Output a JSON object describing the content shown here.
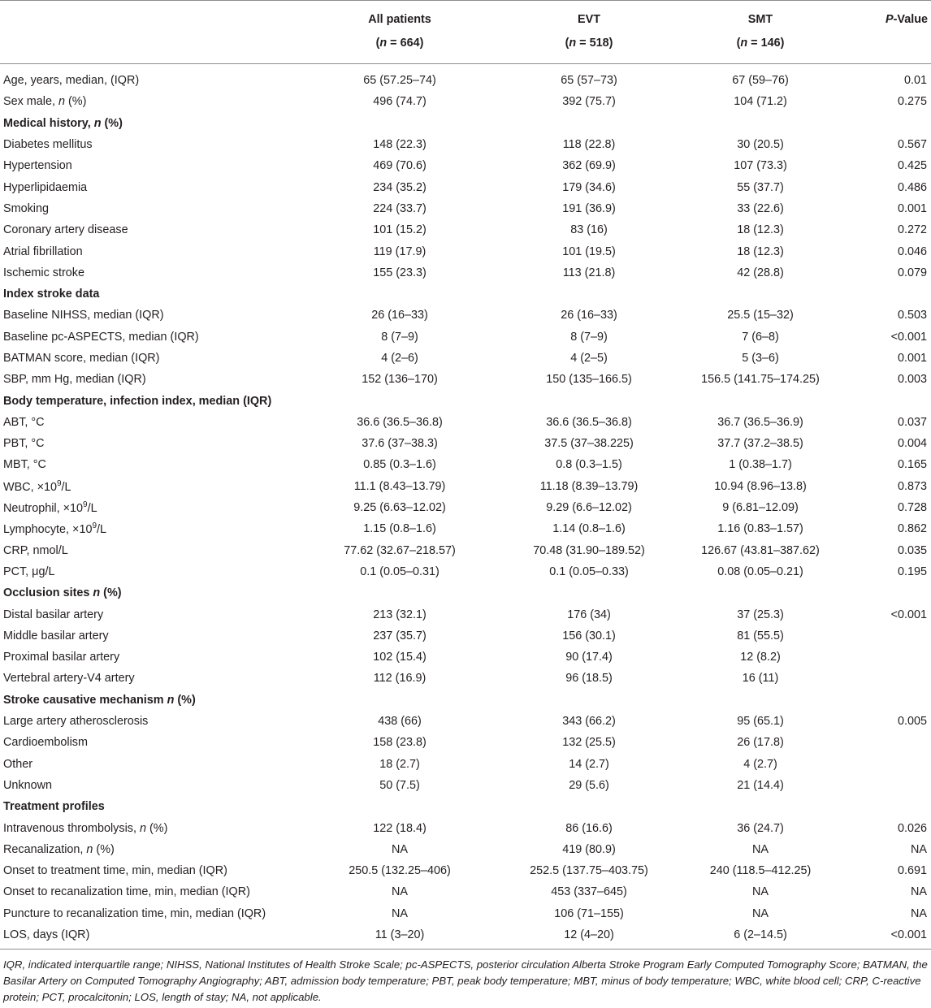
{
  "table": {
    "header": {
      "c1": {
        "name": "All patients",
        "n_label": "n",
        "n_value": " = 664)"
      },
      "c2": {
        "name": "EVT",
        "n_label": "n",
        "n_value": " = 518)"
      },
      "c3": {
        "name": "SMT",
        "n_label": "n",
        "n_value": " = 146)"
      },
      "pvalue": {
        "italic": "P",
        "rest": "-Value"
      }
    },
    "rows": [
      {
        "type": "data",
        "label": "Age, years, median, (IQR)",
        "all": "65 (57.25–74)",
        "evt": "65 (57–73)",
        "smt": "67 (59–76)",
        "p": "0.01"
      },
      {
        "type": "data",
        "label": "Sex male, ",
        "label_it": "n",
        "label_post": " (%)",
        "all": "496 (74.7)",
        "evt": "392 (75.7)",
        "smt": "104 (71.2)",
        "p": "0.275"
      },
      {
        "type": "section",
        "label": "Medical history, ",
        "label_it": "n",
        "label_post": " (%)"
      },
      {
        "type": "data",
        "label": "Diabetes mellitus",
        "all": "148 (22.3)",
        "evt": "118 (22.8)",
        "smt": "30 (20.5)",
        "p": "0.567"
      },
      {
        "type": "data",
        "label": "Hypertension",
        "all": "469 (70.6)",
        "evt": "362 (69.9)",
        "smt": "107 (73.3)",
        "p": "0.425"
      },
      {
        "type": "data",
        "label": "Hyperlipidaemia",
        "all": "234 (35.2)",
        "evt": "179 (34.6)",
        "smt": "55 (37.7)",
        "p": "0.486"
      },
      {
        "type": "data",
        "label": "Smoking",
        "all": "224 (33.7)",
        "evt": "191 (36.9)",
        "smt": "33 (22.6)",
        "p": "0.001"
      },
      {
        "type": "data",
        "label": "Coronary artery disease",
        "all": "101 (15.2)",
        "evt": "83 (16)",
        "smt": "18 (12.3)",
        "p": "0.272"
      },
      {
        "type": "data",
        "label": "Atrial fibrillation",
        "all": "119 (17.9)",
        "evt": "101 (19.5)",
        "smt": "18 (12.3)",
        "p": "0.046"
      },
      {
        "type": "data",
        "label": "Ischemic stroke",
        "all": "155 (23.3)",
        "evt": "113 (21.8)",
        "smt": "42 (28.8)",
        "p": "0.079"
      },
      {
        "type": "section",
        "label": "Index stroke data"
      },
      {
        "type": "data",
        "label": "Baseline NIHSS, median (IQR)",
        "all": "26 (16–33)",
        "evt": "26 (16–33)",
        "smt": "25.5 (15–32)",
        "p": "0.503"
      },
      {
        "type": "data",
        "label": "Baseline pc-ASPECTS, median (IQR)",
        "all": "8 (7–9)",
        "evt": "8 (7–9)",
        "smt": "7 (6–8)",
        "p": "<0.001"
      },
      {
        "type": "data",
        "label": "BATMAN score, median (IQR)",
        "all": "4 (2–6)",
        "evt": "4 (2–5)",
        "smt": "5 (3–6)",
        "p": "0.001"
      },
      {
        "type": "data",
        "label": "SBP, mm Hg, median (IQR)",
        "all": "152 (136–170)",
        "evt": "150 (135–166.5)",
        "smt": "156.5 (141.75–174.25)",
        "p": "0.003"
      },
      {
        "type": "section",
        "label": "Body temperature, infection index, median (IQR)"
      },
      {
        "type": "data",
        "label": "ABT, °C",
        "all": "36.6 (36.5–36.8)",
        "evt": "36.6 (36.5–36.8)",
        "smt": "36.7 (36.5–36.9)",
        "p": "0.037"
      },
      {
        "type": "data",
        "label": "PBT, °C",
        "all": "37.6 (37–38.3)",
        "evt": "37.5 (37–38.225)",
        "smt": "37.7 (37.2–38.5)",
        "p": "0.004"
      },
      {
        "type": "data",
        "label": "MBT, °C",
        "all": "0.85 (0.3–1.6)",
        "evt": "0.8 (0.3–1.5)",
        "smt": "1 (0.38–1.7)",
        "p": "0.165"
      },
      {
        "type": "data",
        "label": "WBC, ×10",
        "label_sup": "9",
        "label_post": "/L",
        "all": "11.1 (8.43–13.79)",
        "evt": "11.18 (8.39–13.79)",
        "smt": "10.94 (8.96–13.8)",
        "p": "0.873"
      },
      {
        "type": "data",
        "label": "Neutrophil, ×10",
        "label_sup": "9",
        "label_post": "/L",
        "all": "9.25 (6.63–12.02)",
        "evt": "9.29 (6.6–12.02)",
        "smt": "9 (6.81–12.09)",
        "p": "0.728"
      },
      {
        "type": "data",
        "label": "Lymphocyte, ×10",
        "label_sup": "9",
        "label_post": "/L",
        "all": "1.15 (0.8–1.6)",
        "evt": "1.14 (0.8–1.6)",
        "smt": "1.16 (0.83–1.57)",
        "p": "0.862"
      },
      {
        "type": "data",
        "label": "CRP, nmol/L",
        "all": "77.62 (32.67–218.57)",
        "evt": "70.48 (31.90–189.52)",
        "smt": "126.67 (43.81–387.62)",
        "p": "0.035"
      },
      {
        "type": "data",
        "label": "PCT, μg/L",
        "all": "0.1 (0.05–0.31)",
        "evt": "0.1 (0.05–0.33)",
        "smt": "0.08 (0.05–0.21)",
        "p": "0.195"
      },
      {
        "type": "section",
        "label": "Occlusion sites ",
        "label_it": "n",
        "label_post": " (%)"
      },
      {
        "type": "data",
        "label": "Distal basilar artery",
        "all": "213 (32.1)",
        "evt": "176 (34)",
        "smt": "37 (25.3)",
        "p": "<0.001"
      },
      {
        "type": "data",
        "label": "Middle basilar artery",
        "all": "237 (35.7)",
        "evt": "156 (30.1)",
        "smt": "81 (55.5)",
        "p": ""
      },
      {
        "type": "data",
        "label": "Proximal basilar artery",
        "all": "102 (15.4)",
        "evt": "90 (17.4)",
        "smt": "12 (8.2)",
        "p": ""
      },
      {
        "type": "data",
        "label": "Vertebral artery-V4 artery",
        "all": "112 (16.9)",
        "evt": "96 (18.5)",
        "smt": "16 (11)",
        "p": ""
      },
      {
        "type": "section",
        "label": "Stroke causative mechanism ",
        "label_it": "n",
        "label_post": " (%)"
      },
      {
        "type": "data",
        "label": "Large artery atherosclerosis",
        "all": "438 (66)",
        "evt": "343 (66.2)",
        "smt": "95 (65.1)",
        "p": "0.005"
      },
      {
        "type": "data",
        "label": "Cardioembolism",
        "all": "158 (23.8)",
        "evt": "132 (25.5)",
        "smt": "26 (17.8)",
        "p": ""
      },
      {
        "type": "data",
        "label": "Other",
        "all": "18 (2.7)",
        "evt": "14 (2.7)",
        "smt": "4 (2.7)",
        "p": ""
      },
      {
        "type": "data",
        "label": "Unknown",
        "all": "50 (7.5)",
        "evt": "29 (5.6)",
        "smt": "21 (14.4)",
        "p": ""
      },
      {
        "type": "section",
        "label": "Treatment profiles"
      },
      {
        "type": "data",
        "label": "Intravenous thrombolysis, ",
        "label_it": "n",
        "label_post": " (%)",
        "all": "122 (18.4)",
        "evt": "86 (16.6)",
        "smt": "36 (24.7)",
        "p": "0.026"
      },
      {
        "type": "data",
        "label": "Recanalization, ",
        "label_it": "n",
        "label_post": " (%)",
        "all": "NA",
        "evt": "419 (80.9)",
        "smt": "NA",
        "p": "NA"
      },
      {
        "type": "data",
        "label": "Onset to treatment time, min, median (IQR)",
        "all": "250.5 (132.25–406)",
        "evt": "252.5 (137.75–403.75)",
        "smt": "240 (118.5–412.25)",
        "p": "0.691"
      },
      {
        "type": "data",
        "label": "Onset to recanalization time, min, median (IQR)",
        "all": "NA",
        "evt": "453 (337–645)",
        "smt": "NA",
        "p": "NA"
      },
      {
        "type": "data",
        "label": "Puncture to recanalization time, min, median (IQR)",
        "all": "NA",
        "evt": "106 (71–155)",
        "smt": "NA",
        "p": "NA"
      },
      {
        "type": "data",
        "label": "LOS, days (IQR)",
        "all": "11 (3–20)",
        "evt": "12 (4–20)",
        "smt": "6 (2–14.5)",
        "p": "<0.001"
      }
    ]
  },
  "footnote": "IQR, indicated interquartile range; NIHSS, National Institutes of Health Stroke Scale; pc-ASPECTS, posterior circulation Alberta Stroke Program Early Computed Tomography Score; BATMAN, the Basilar Artery on Computed Tomography Angiography; ABT, admission body temperature; PBT, peak body temperature; MBT, minus of body temperature; WBC, white blood cell; CRP, C-reactive protein; PCT, procalcitonin; LOS, length of stay; NA, not applicable."
}
